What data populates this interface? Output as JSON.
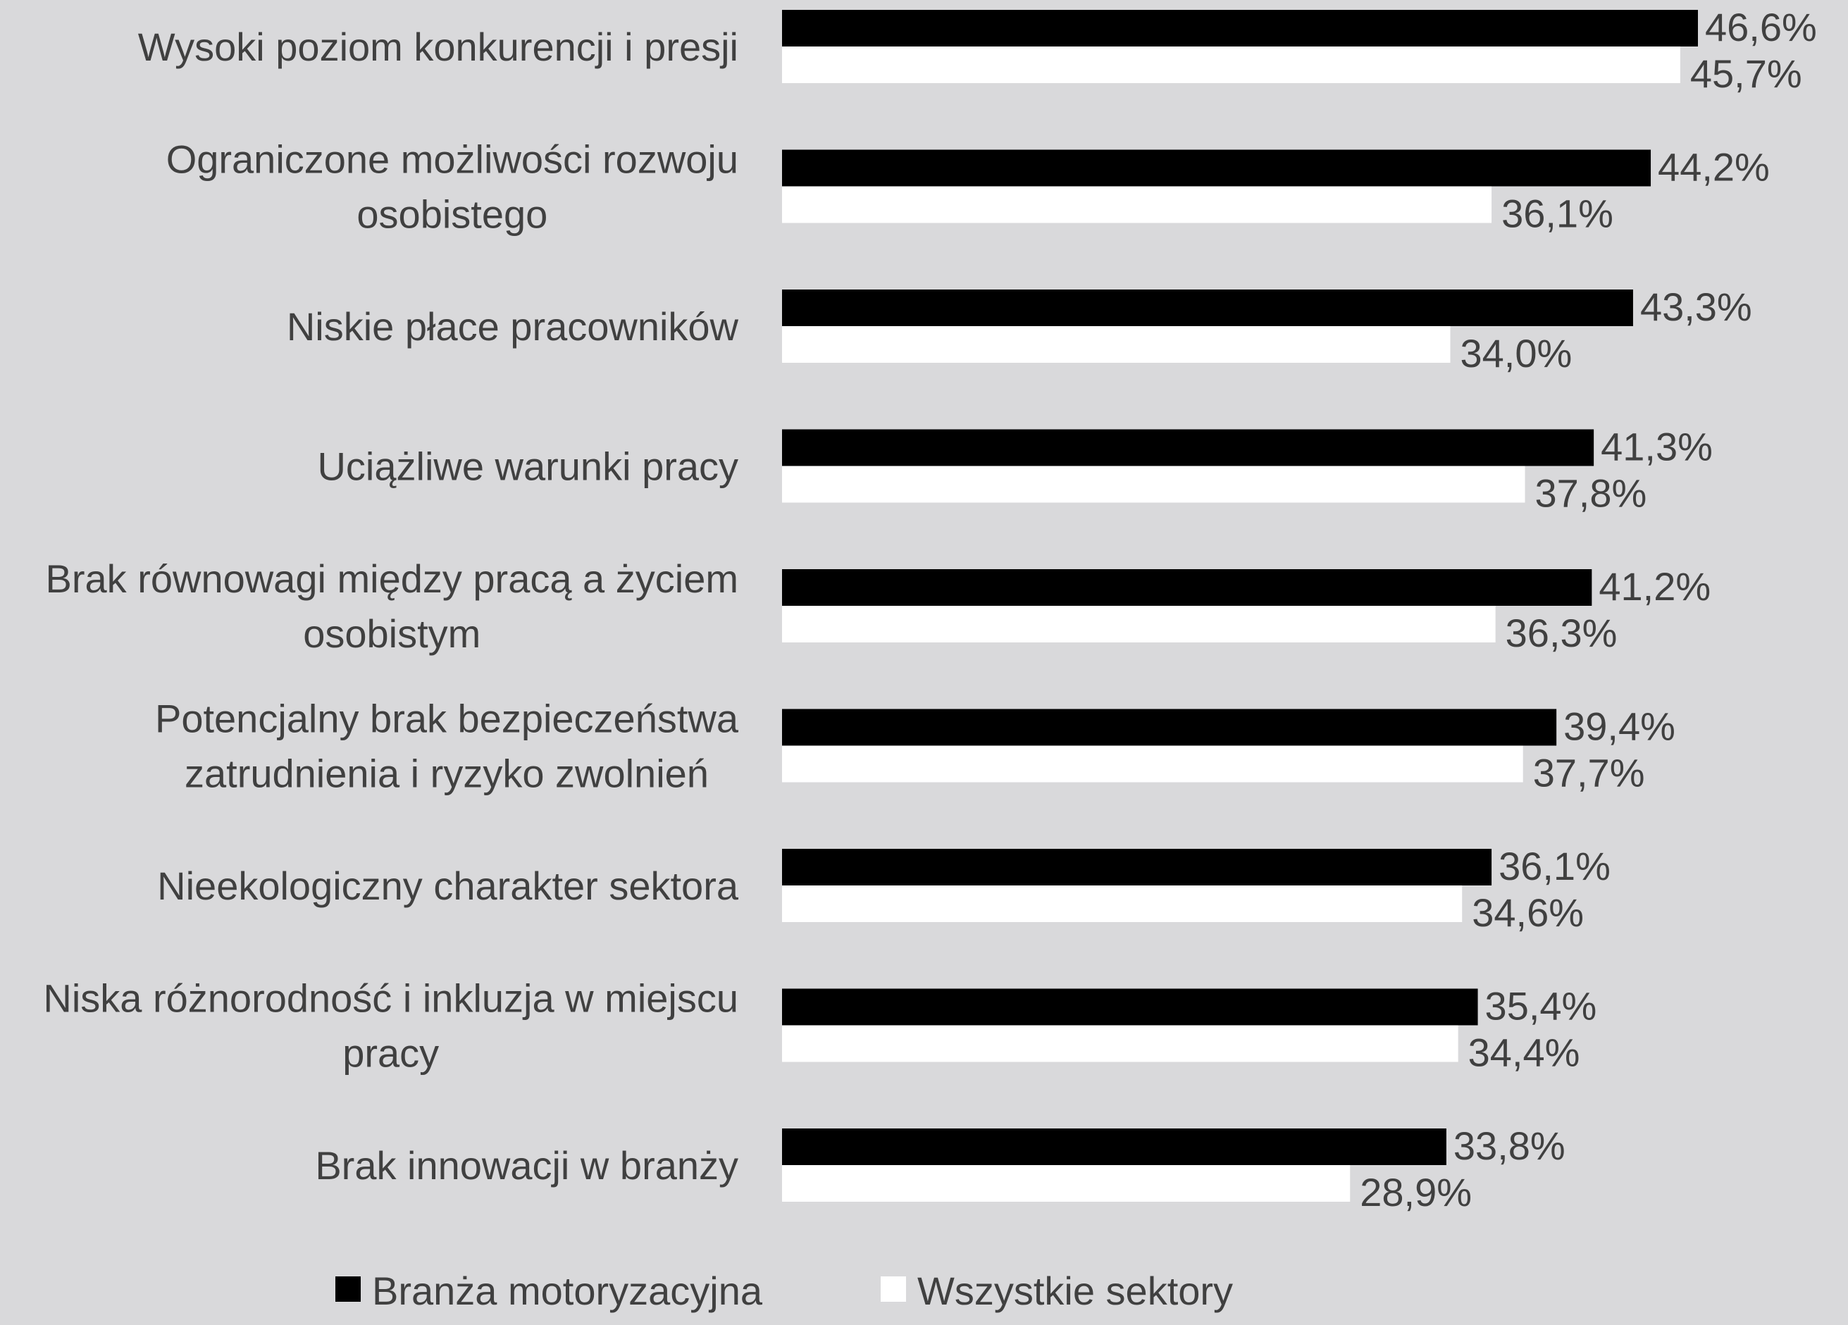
{
  "chart_data": {
    "type": "bar",
    "orientation": "horizontal",
    "categories": [
      [
        "Wysoki poziom konkurencji i presji"
      ],
      [
        "Ograniczone możliwości rozwoju",
        "osobistego"
      ],
      [
        "Niskie płace pracowników"
      ],
      [
        "Uciążliwe warunki pracy"
      ],
      [
        "Brak równowagi między pracą a życiem",
        "osobistym"
      ],
      [
        "Potencjalny brak bezpieczeństwa",
        "zatrudnienia i ryzyko zwolnień"
      ],
      [
        "Nieekologiczny charakter sektora"
      ],
      [
        "Niska różnorodność i inkluzja w miejscu",
        "pracy"
      ],
      [
        "Brak innowacji w branży"
      ]
    ],
    "series": [
      {
        "name": "Branża motoryzacyjna",
        "color": "#000000",
        "values": [
          46.6,
          44.2,
          43.3,
          41.3,
          41.2,
          39.4,
          36.1,
          35.4,
          33.8
        ],
        "labels": [
          "46,6%",
          "44,2%",
          "43,3%",
          "41,3%",
          "41,2%",
          "39,4%",
          "36,1%",
          "35,4%",
          "33,8%"
        ]
      },
      {
        "name": "Wszystkie sektory",
        "color": "#ffffff",
        "values": [
          45.7,
          36.1,
          34.0,
          37.8,
          36.3,
          37.7,
          34.6,
          34.4,
          28.9
        ],
        "labels": [
          "45,7%",
          "36,1%",
          "34,0%",
          "37,8%",
          "36,3%",
          "37,7%",
          "34,6%",
          "34,4%",
          "28,9%"
        ]
      }
    ],
    "xlim": [
      0,
      50
    ],
    "grid": false,
    "legend_position": "bottom"
  }
}
